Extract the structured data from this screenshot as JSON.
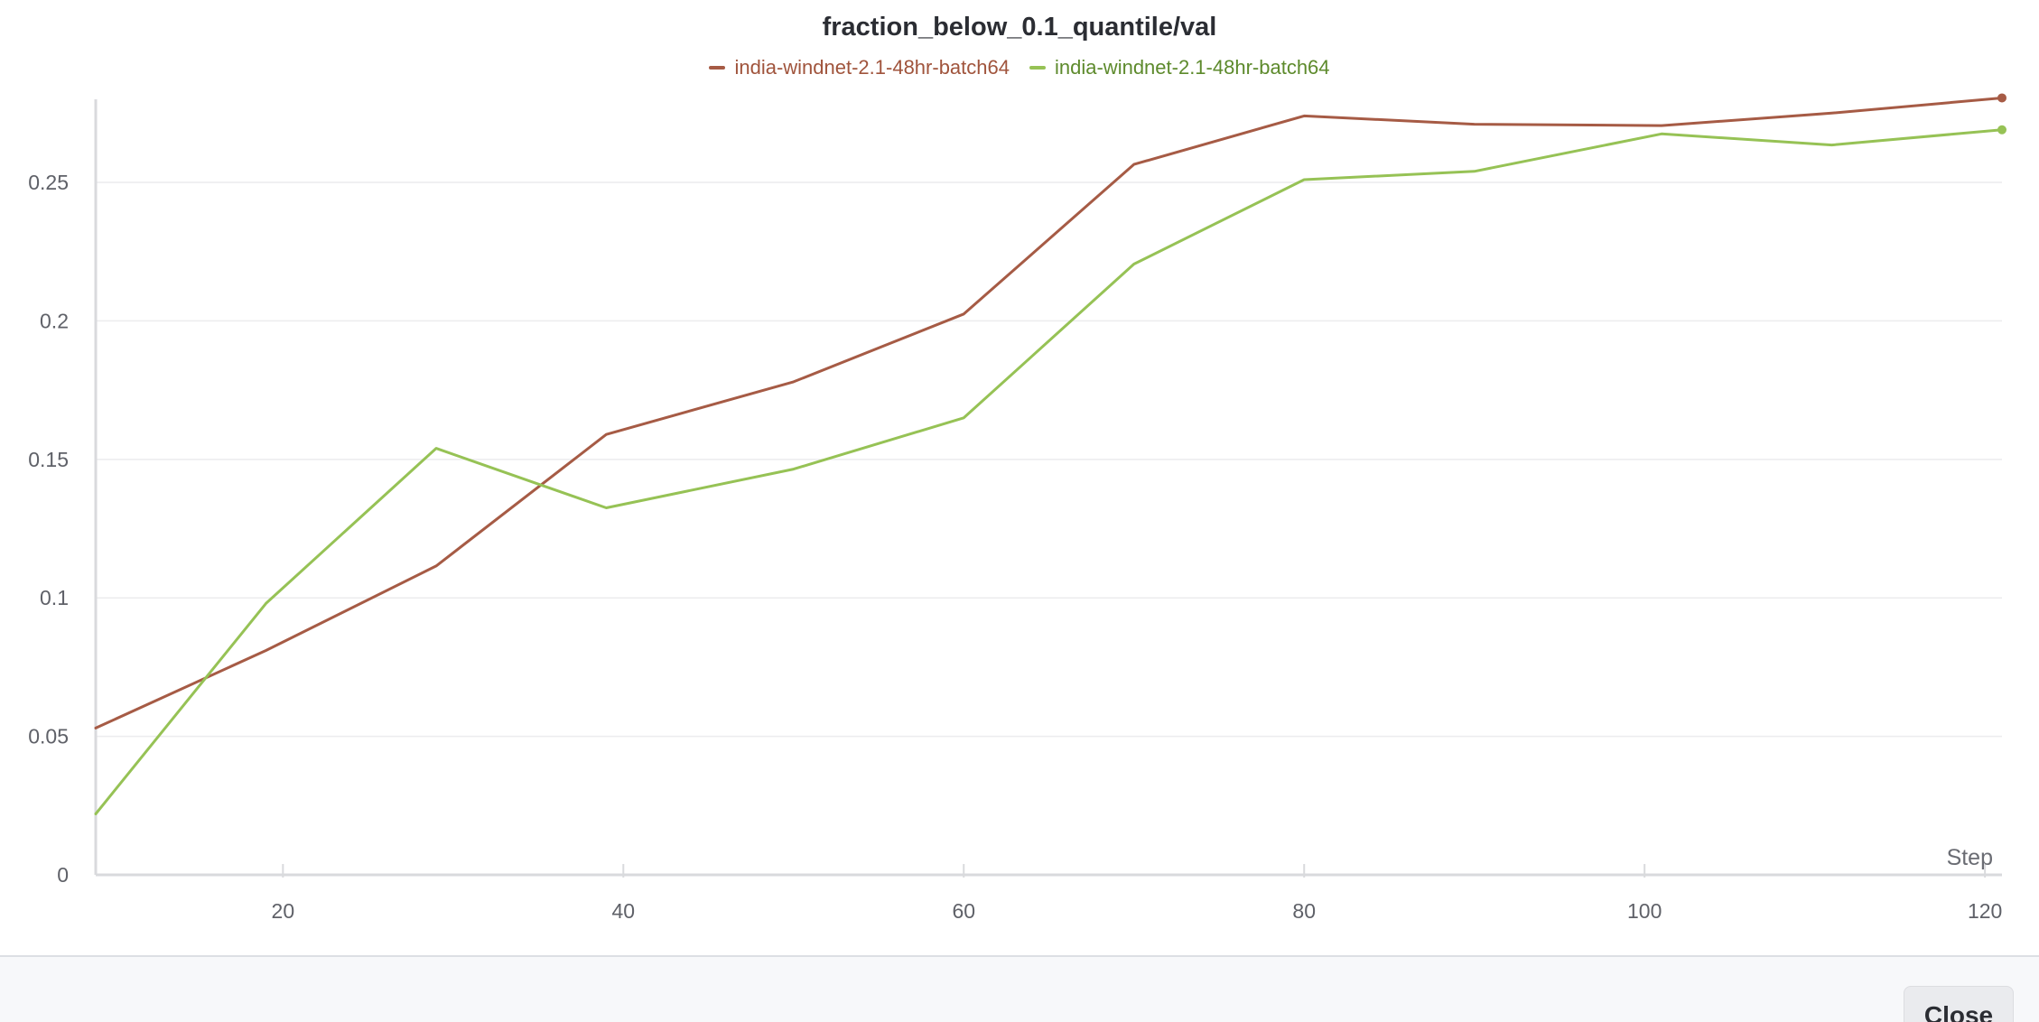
{
  "chart_data": {
    "type": "line",
    "title": "fraction_below_0.1_quantile/val",
    "xlabel": "Step",
    "ylabel": "",
    "xlim": [
      9,
      121
    ],
    "ylim": [
      0,
      0.28
    ],
    "x_ticks": [
      20,
      40,
      60,
      80,
      100,
      120
    ],
    "y_ticks": [
      0,
      0.05,
      0.1,
      0.15,
      0.2,
      0.25
    ],
    "x_tick_labels": [
      "20",
      "40",
      "60",
      "80",
      "100",
      "120"
    ],
    "y_tick_labels": [
      "0",
      "0.05",
      "0.1",
      "0.15",
      "0.2",
      "0.25"
    ],
    "grid": "horizontal",
    "legend": "top-center",
    "series": [
      {
        "name": "india-windnet-2.1-48hr-batch64",
        "color": "#a65b45",
        "text_color": "#a0543c",
        "x": [
          9,
          19,
          29,
          39,
          50,
          60,
          70,
          80,
          90,
          101,
          111,
          121
        ],
        "y": [
          0.053,
          0.081,
          0.1115,
          0.159,
          0.178,
          0.2025,
          0.2565,
          0.274,
          0.271,
          0.2705,
          0.275,
          0.2805
        ]
      },
      {
        "name": "india-windnet-2.1-48hr-batch64",
        "color": "#96c255",
        "text_color": "#5d8a2c",
        "x": [
          9,
          19,
          29,
          39,
          50,
          60,
          70,
          80,
          90,
          101,
          111,
          121
        ],
        "y": [
          0.022,
          0.098,
          0.154,
          0.1325,
          0.1465,
          0.165,
          0.2205,
          0.251,
          0.254,
          0.2675,
          0.2635,
          0.269
        ]
      }
    ]
  },
  "footer": {
    "close_label": "Close"
  }
}
